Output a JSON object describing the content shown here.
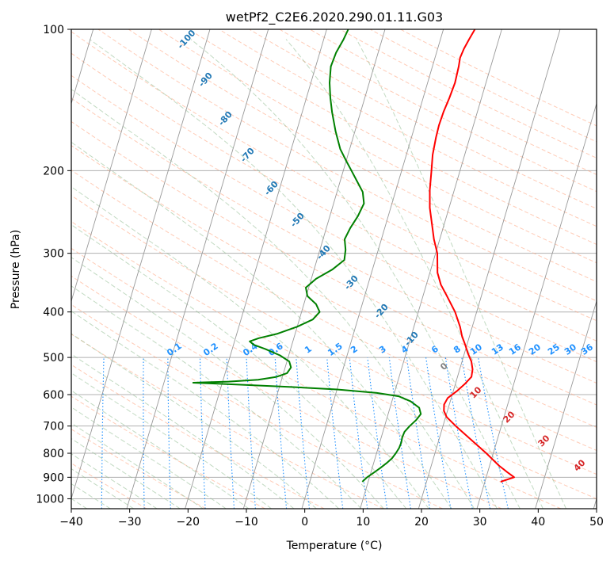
{
  "chart_data": {
    "type": "line",
    "title": "wetPf2_C2E6.2020.290.01.11.G03",
    "xlabel": "Temperature (°C)",
    "ylabel": "Pressure (hPa)",
    "xlim": [
      -40,
      50
    ],
    "ylim": [
      1050,
      100
    ],
    "y_scale": "log",
    "x_ticks": [
      -40,
      -30,
      -20,
      -10,
      0,
      10,
      20,
      30,
      40,
      50
    ],
    "x_tick_labels": [
      "−40",
      "−30",
      "−20",
      "−10",
      "0",
      "10",
      "20",
      "30",
      "40",
      "50"
    ],
    "y_ticks": [
      100,
      200,
      300,
      400,
      500,
      600,
      700,
      800,
      900,
      1000
    ],
    "grid": true,
    "skew": true,
    "series": [
      {
        "color": "#ff0000",
        "points": [
          [
            920,
            32.7
          ],
          [
            900,
            34.8
          ],
          [
            880,
            33.5
          ],
          [
            850,
            31.6
          ],
          [
            800,
            28.8
          ],
          [
            750,
            25.6
          ],
          [
            700,
            22.2
          ],
          [
            670,
            20.2
          ],
          [
            650,
            19.4
          ],
          [
            630,
            19.1
          ],
          [
            610,
            19.4
          ],
          [
            590,
            20.6
          ],
          [
            570,
            21.6
          ],
          [
            550,
            22.4
          ],
          [
            530,
            22.2
          ],
          [
            510,
            21.6
          ],
          [
            490,
            20.6
          ],
          [
            470,
            19.7
          ],
          [
            450,
            18.7
          ],
          [
            430,
            17.9
          ],
          [
            400,
            16.3
          ],
          [
            370,
            14.1
          ],
          [
            350,
            12.5
          ],
          [
            330,
            11.3
          ],
          [
            300,
            10.3
          ],
          [
            280,
            9.0
          ],
          [
            260,
            7.9
          ],
          [
            240,
            6.7
          ],
          [
            220,
            5.8
          ],
          [
            200,
            5.1
          ],
          [
            185,
            4.5
          ],
          [
            170,
            4.2
          ],
          [
            160,
            4.1
          ],
          [
            150,
            4.2
          ],
          [
            140,
            4.5
          ],
          [
            130,
            4.7
          ],
          [
            120,
            4.5
          ],
          [
            115,
            4.3
          ],
          [
            110,
            4.5
          ],
          [
            105,
            4.9
          ],
          [
            100,
            5.4
          ]
        ]
      },
      {
        "color": "#008000",
        "points": [
          [
            920,
            9.0
          ],
          [
            900,
            9.6
          ],
          [
            880,
            10.5
          ],
          [
            860,
            11.4
          ],
          [
            840,
            12.2
          ],
          [
            820,
            12.9
          ],
          [
            800,
            13.3
          ],
          [
            780,
            13.6
          ],
          [
            760,
            13.7
          ],
          [
            740,
            13.6
          ],
          [
            720,
            13.7
          ],
          [
            700,
            14.3
          ],
          [
            680,
            15.1
          ],
          [
            660,
            15.6
          ],
          [
            640,
            15.0
          ],
          [
            620,
            13.2
          ],
          [
            605,
            10.9
          ],
          [
            595,
            7.0
          ],
          [
            585,
            0.0
          ],
          [
            578,
            -8.0
          ],
          [
            572,
            -16.0
          ],
          [
            568,
            -22.0
          ],
          [
            566,
            -25.0
          ],
          [
            563,
            -19.0
          ],
          [
            558,
            -14.0
          ],
          [
            550,
            -11.0
          ],
          [
            540,
            -9.4
          ],
          [
            525,
            -9.0
          ],
          [
            510,
            -9.6
          ],
          [
            495,
            -11.5
          ],
          [
            480,
            -14.3
          ],
          [
            470,
            -16.5
          ],
          [
            462,
            -17.4
          ],
          [
            455,
            -16.0
          ],
          [
            445,
            -13.0
          ],
          [
            430,
            -10.0
          ],
          [
            415,
            -7.7
          ],
          [
            400,
            -6.9
          ],
          [
            385,
            -7.9
          ],
          [
            370,
            -9.8
          ],
          [
            355,
            -10.5
          ],
          [
            340,
            -9.2
          ],
          [
            325,
            -6.9
          ],
          [
            310,
            -5.3
          ],
          [
            295,
            -5.6
          ],
          [
            280,
            -6.3
          ],
          [
            265,
            -5.9
          ],
          [
            250,
            -5.2
          ],
          [
            235,
            -4.8
          ],
          [
            222,
            -5.6
          ],
          [
            210,
            -7.2
          ],
          [
            200,
            -8.6
          ],
          [
            190,
            -10.1
          ],
          [
            180,
            -11.6
          ],
          [
            165,
            -13.3
          ],
          [
            150,
            -14.9
          ],
          [
            140,
            -15.9
          ],
          [
            130,
            -16.8
          ],
          [
            120,
            -17.4
          ],
          [
            112,
            -17.2
          ],
          [
            105,
            -16.6
          ],
          [
            100,
            -16.3
          ]
        ]
      }
    ],
    "annotations": {
      "dry_adiabat_labels": [
        "-100",
        "-90",
        "-80",
        "-70",
        "-60",
        "-50",
        "-40",
        "-30",
        "-20",
        "-10"
      ],
      "mixing_ratio_labels": [
        "0.1",
        "0.2",
        "0.4",
        "0.6",
        "1",
        "1.5",
        "2",
        "3",
        "4",
        "6",
        "8",
        "10",
        "13",
        "16",
        "20",
        "25",
        "30",
        "36"
      ],
      "moist_adiabat_labels": [
        "0",
        "10",
        "20",
        "30",
        "40"
      ]
    },
    "colors": {
      "dry_adiabat": "#ffa07a",
      "moist_adiabat": "#8fbc8f",
      "mixing_ratio": "#1e90ff",
      "isotherm": "#808080",
      "dry_label": "#1f77b4",
      "mixing_label": "#1e90ff",
      "moist_label": "#d62728",
      "zero_isotherm_label": "#808080"
    }
  }
}
